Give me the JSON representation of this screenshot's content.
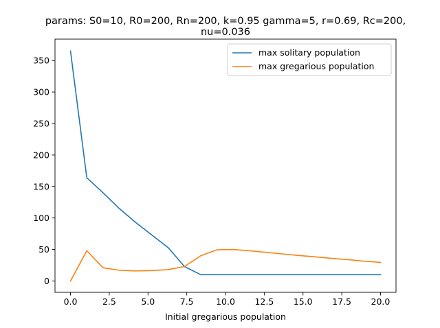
{
  "chart_data": {
    "type": "line",
    "title_line1": "params: S0=10, R0=200, Rn=200, k=0.95 gamma=5, r=0.69, Rc=200,",
    "title_line2": "nu=0.036",
    "xlabel": "Initial gregarious population",
    "ylabel": "",
    "xlim": [
      -1.0,
      21.0
    ],
    "ylim": [
      -18.0,
      384.0
    ],
    "xticks": [
      0.0,
      2.5,
      5.0,
      7.5,
      10.0,
      12.5,
      15.0,
      17.5,
      20.0
    ],
    "xtick_labels": [
      "0.0",
      "2.5",
      "5.0",
      "7.5",
      "10.0",
      "12.5",
      "15.0",
      "17.5",
      "20.0"
    ],
    "yticks": [
      0,
      50,
      100,
      150,
      200,
      250,
      300,
      350
    ],
    "ytick_labels": [
      "0",
      "50",
      "100",
      "150",
      "200",
      "250",
      "300",
      "350"
    ],
    "legend_position": "top-right",
    "grid": false,
    "x": [
      0.0,
      1.05,
      2.1,
      3.15,
      4.2,
      5.25,
      6.3,
      7.35,
      8.4,
      9.45,
      10.5,
      11.55,
      12.6,
      13.65,
      14.7,
      15.75,
      16.8,
      17.85,
      18.9,
      20.0
    ],
    "series": [
      {
        "name": "max solitary population",
        "color": "#1f77b4",
        "values": [
          365,
          164,
          140,
          115,
          93,
          73,
          53,
          23,
          10,
          10,
          10,
          10,
          10,
          10,
          10,
          10,
          10,
          10,
          10,
          10
        ]
      },
      {
        "name": "max gregarious population",
        "color": "#ff7f0e",
        "values": [
          0,
          48,
          21,
          17,
          16,
          16.5,
          18,
          23,
          40,
          49.5,
          50,
          48,
          45.5,
          43,
          40.5,
          38.5,
          36,
          34,
          31.5,
          29.5
        ]
      }
    ]
  }
}
